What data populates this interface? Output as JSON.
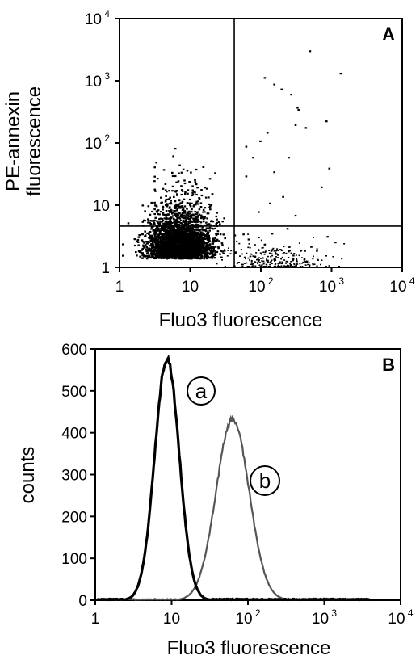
{
  "chart_data": [
    {
      "type": "scatter",
      "panel_label": "A",
      "xlabel": "Fluo3 fluorescence",
      "ylabel_line1": "PE-annexin",
      "ylabel_line2": "fluorescence",
      "x_scale": "log",
      "y_scale": "log",
      "xlim": [
        1,
        10000
      ],
      "ylim": [
        1,
        10000
      ],
      "x_ticks": [
        {
          "value": 1,
          "base": "1",
          "exp": ""
        },
        {
          "value": 10,
          "base": "10",
          "exp": ""
        },
        {
          "value": 100,
          "base": "10",
          "exp": "2"
        },
        {
          "value": 1000,
          "base": "10",
          "exp": "3"
        },
        {
          "value": 10000,
          "base": "10",
          "exp": "4"
        }
      ],
      "y_ticks": [
        {
          "value": 1,
          "base": "1",
          "exp": ""
        },
        {
          "value": 10,
          "base": "10",
          "exp": ""
        },
        {
          "value": 100,
          "base": "10",
          "exp": "2"
        },
        {
          "value": 1000,
          "base": "10",
          "exp": "3"
        },
        {
          "value": 10000,
          "base": "10",
          "exp": "4"
        }
      ],
      "quadrant_gates": {
        "x": 42,
        "y": 4.6
      },
      "main_population": {
        "x_center": 7,
        "y_center": 1.6
      },
      "outlier_points": [
        [
          480,
          3100
        ],
        [
          1300,
          1350
        ],
        [
          110,
          1150
        ],
        [
          150,
          900
        ],
        [
          190,
          750
        ],
        [
          260,
          620
        ],
        [
          320,
          380
        ],
        [
          330,
          350
        ],
        [
          820,
          230
        ],
        [
          300,
          200
        ],
        [
          420,
          180
        ],
        [
          120,
          150
        ],
        [
          95,
          110
        ],
        [
          60,
          90
        ],
        [
          75,
          60
        ],
        [
          240,
          60
        ],
        [
          900,
          40
        ],
        [
          150,
          35
        ],
        [
          60,
          30
        ],
        [
          700,
          20
        ],
        [
          200,
          14
        ],
        [
          130,
          11
        ],
        [
          90,
          8
        ],
        [
          300,
          7
        ],
        [
          850,
          3.2
        ],
        [
          1100,
          2.6
        ],
        [
          500,
          2.2
        ],
        [
          600,
          1.9
        ],
        [
          400,
          1.4
        ],
        [
          160,
          1.7
        ],
        [
          110,
          2.4
        ],
        [
          80,
          1.5
        ],
        [
          55,
          3.5
        ],
        [
          65,
          2.9
        ],
        [
          140,
          3.6
        ],
        [
          230,
          4.3
        ],
        [
          190,
          1.2
        ],
        [
          280,
          1.6
        ]
      ]
    },
    {
      "type": "line",
      "panel_label": "B",
      "xlabel": "Fluo3 fluorescence",
      "ylabel": "counts",
      "x_scale": "log",
      "xlim": [
        1,
        10000
      ],
      "ylim": [
        0,
        600
      ],
      "x_ticks": [
        {
          "value": 1,
          "base": "1",
          "exp": ""
        },
        {
          "value": 10,
          "base": "10",
          "exp": ""
        },
        {
          "value": 100,
          "base": "10",
          "exp": "2"
        },
        {
          "value": 1000,
          "base": "10",
          "exp": "3"
        },
        {
          "value": 10000,
          "base": "10",
          "exp": "4"
        }
      ],
      "y_ticks": [
        0,
        100,
        200,
        300,
        400,
        500,
        600
      ],
      "series": [
        {
          "name": "a",
          "color": "#000000",
          "peak_x": 8.7,
          "peak_y": 578
        },
        {
          "name": "b",
          "color": "#555555",
          "peak_x": 63,
          "peak_y": 432
        }
      ]
    }
  ]
}
